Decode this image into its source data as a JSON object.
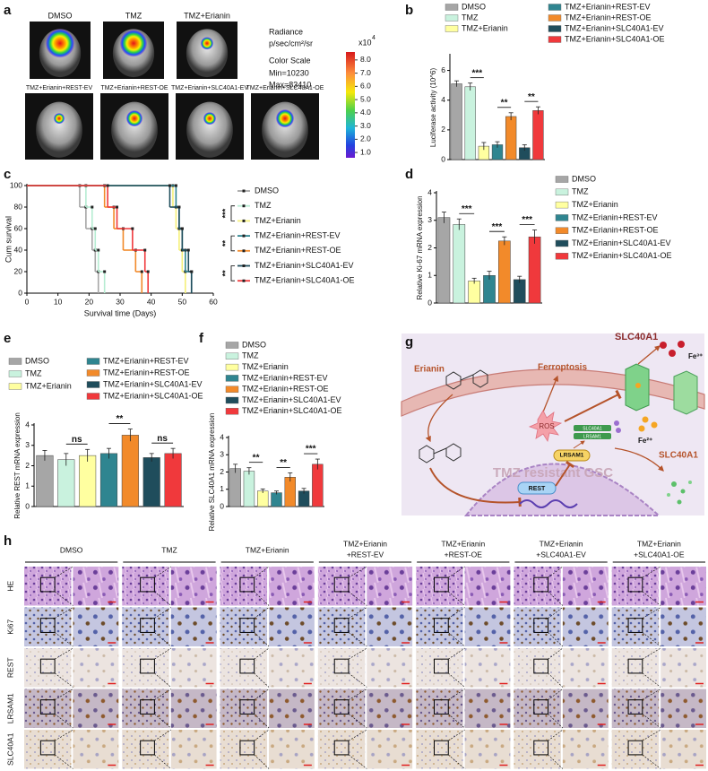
{
  "panel_labels": [
    "a",
    "b",
    "c",
    "d",
    "e",
    "f",
    "g",
    "h"
  ],
  "imaging": {
    "groups_top": [
      "DMSO",
      "TMZ",
      "TMZ+Erianin"
    ],
    "groups_bottom": [
      "TMZ+Erianin+REST-EV",
      "TMZ+Erianin+REST-OE",
      "TMZ+Erianin+SLC40A1-EV",
      "TMZ+Erianin+SLC40A1-OE"
    ],
    "radiance": "Radiance",
    "radiance_unit": "p/sec/cm²/sr",
    "color_scale": "Color Scale",
    "min": "Min=10230",
    "max": "Max=83410",
    "colorbar": {
      "multiplier": "x10",
      "exponent": "4",
      "lim": [
        0.6,
        8.6
      ],
      "ticks": [
        {
          "value": 1,
          "label": "1.0"
        },
        {
          "value": 2,
          "label": "2.0"
        },
        {
          "value": 3,
          "label": "3.0"
        },
        {
          "value": 4,
          "label": "4.0"
        },
        {
          "value": 5,
          "label": "5.0"
        },
        {
          "value": 6,
          "label": "6.0"
        },
        {
          "value": 7,
          "label": "7.0"
        },
        {
          "value": 8,
          "label": "8.0"
        }
      ]
    }
  },
  "chart_data": [
    {
      "type": "bar",
      "categories": [
        "DMSO",
        "TMZ",
        "TMZ+Erianin",
        "TMZ+Erianin+REST-EV",
        "TMZ+Erianin+REST-OE",
        "TMZ+Erianin+SLC40A1-EV",
        "TMZ+Erianin+SLC40A1-OE"
      ],
      "colors": [
        "#a6a6a6",
        "#c9f2de",
        "#ffffa0",
        "#2f8590",
        "#f28a2a",
        "#1f4d5c",
        "#f0393c"
      ],
      "values": [
        5.1,
        4.9,
        0.9,
        1.0,
        2.9,
        0.8,
        3.3
      ],
      "errors": [
        0.2,
        0.25,
        0.25,
        0.2,
        0.25,
        0.2,
        0.25
      ],
      "y_label": "Luciferase activity (10^6)",
      "ylim": [
        0,
        7
      ],
      "yticks": [
        0,
        2,
        4,
        6
      ],
      "annotations": [
        "***",
        "**",
        "**"
      ]
    },
    {
      "type": "survival",
      "x_label": "Survival time (Days)",
      "y_label": "Cum survival",
      "xlim": [
        0,
        60
      ],
      "xticks": [
        0,
        10,
        20,
        30,
        40,
        50,
        60
      ],
      "ylim": [
        0,
        100
      ],
      "yticks": [
        0,
        20,
        40,
        60,
        80,
        100
      ],
      "series": [
        {
          "name": "DMSO",
          "color": "#a6a6a6",
          "x": [
            0,
            17,
            19,
            21,
            22,
            23
          ],
          "values": [
            100,
            80,
            60,
            40,
            20,
            0
          ]
        },
        {
          "name": "TMZ",
          "color": "#b6ecd2",
          "x": [
            0,
            19,
            21,
            22,
            23,
            25
          ],
          "values": [
            100,
            80,
            60,
            40,
            20,
            0
          ]
        },
        {
          "name": "TMZ+Erianin",
          "color": "#f5f07a",
          "x": [
            0,
            47,
            48,
            49,
            50,
            51
          ],
          "values": [
            100,
            80,
            60,
            40,
            20,
            0
          ]
        },
        {
          "name": "TMZ+Erianin+REST-EV",
          "color": "#2f8590",
          "x": [
            0,
            48,
            49,
            50,
            51,
            53
          ],
          "values": [
            100,
            80,
            60,
            40,
            20,
            0
          ]
        },
        {
          "name": "TMZ+Erianin+REST-OE",
          "color": "#f28a2a",
          "x": [
            0,
            25,
            28,
            31,
            35,
            37
          ],
          "values": [
            100,
            80,
            60,
            40,
            20,
            0
          ]
        },
        {
          "name": "TMZ+Erianin+SLC40A1-EV",
          "color": "#1f4d5c",
          "x": [
            0,
            46,
            49,
            50,
            52,
            53
          ],
          "values": [
            100,
            80,
            60,
            40,
            20,
            0
          ]
        },
        {
          "name": "TMZ+Erianin+SLC40A1-OE",
          "color": "#f0393c",
          "x": [
            0,
            26,
            29,
            34,
            38,
            39
          ],
          "values": [
            100,
            80,
            60,
            40,
            20,
            0
          ]
        }
      ],
      "annotations": [
        "***",
        "**",
        "**"
      ]
    },
    {
      "type": "bar",
      "categories": [
        "DMSO",
        "TMZ",
        "TMZ+Erianin",
        "TMZ+Erianin+REST-EV",
        "TMZ+Erianin+REST-OE",
        "TMZ+Erianin+SLC40A1-EV",
        "TMZ+Erianin+SLC40A1-OE"
      ],
      "colors": [
        "#a6a6a6",
        "#c9f2de",
        "#ffffa0",
        "#2f8590",
        "#f28a2a",
        "#1f4d5c",
        "#f0393c"
      ],
      "values": [
        3.1,
        2.85,
        0.8,
        1.0,
        2.25,
        0.85,
        2.4
      ],
      "errors": [
        0.2,
        0.2,
        0.1,
        0.15,
        0.15,
        0.12,
        0.25
      ],
      "y_label": "Relative Ki-67 mRNA expression",
      "ylim": [
        0,
        4
      ],
      "yticks": [
        0,
        1,
        2,
        3,
        4
      ],
      "annotations": [
        "***",
        "***",
        "***"
      ]
    },
    {
      "type": "bar",
      "categories": [
        "DMSO",
        "TMZ",
        "TMZ+Erianin",
        "TMZ+Erianin+REST-EV",
        "TMZ+Erianin+REST-OE",
        "TMZ+Erianin+SLC40A1-EV",
        "TMZ+Erianin+SLC40A1-OE"
      ],
      "colors": [
        "#a6a6a6",
        "#c9f2de",
        "#ffffa0",
        "#2f8590",
        "#f28a2a",
        "#1f4d5c",
        "#f0393c"
      ],
      "values": [
        2.5,
        2.3,
        2.5,
        2.6,
        3.5,
        2.4,
        2.6
      ],
      "errors": [
        0.25,
        0.3,
        0.3,
        0.25,
        0.3,
        0.2,
        0.25
      ],
      "y_label": "Relative REST mRNA expression",
      "ylim": [
        0,
        4
      ],
      "yticks": [
        0,
        1,
        2,
        3,
        4
      ],
      "annotations": [
        "ns",
        "**",
        "ns"
      ]
    },
    {
      "type": "bar",
      "categories": [
        "DMSO",
        "TMZ",
        "TMZ+Erianin",
        "TMZ+Erianin+REST-EV",
        "TMZ+Erianin+REST-OE",
        "TMZ+Erianin+SLC40A1-EV",
        "TMZ+Erianin+SLC40A1-OE"
      ],
      "colors": [
        "#a6a6a6",
        "#c9f2de",
        "#ffffa0",
        "#2f8590",
        "#f28a2a",
        "#1f4d5c",
        "#f0393c"
      ],
      "values": [
        2.2,
        2.05,
        0.9,
        0.8,
        1.7,
        0.9,
        2.45
      ],
      "errors": [
        0.25,
        0.2,
        0.12,
        0.1,
        0.25,
        0.15,
        0.3
      ],
      "y_label": "Relative SLC40A1 mRNA expression",
      "ylim": [
        0,
        4
      ],
      "yticks": [
        0,
        1,
        2,
        3,
        4
      ],
      "annotations": [
        "**",
        "**",
        "***"
      ]
    }
  ],
  "diagram": {
    "erianin": "Erianin",
    "ferroptosis": "Ferroptosis",
    "slc40a1_top": "SLC40A1",
    "fe3": "Fe³⁺",
    "fe2": "Fe²⁺",
    "ros": "ROS",
    "slc40a1_small": "SLC40A1",
    "lrsam1_small": "LRSAM1",
    "lrsam1": "LRSAM1",
    "rest": "REST",
    "cell": "TMZ resistant GSC",
    "slc40a1_right": "SLC40A1"
  },
  "histology": {
    "columns": [
      [
        "DMSO"
      ],
      [
        "TMZ"
      ],
      [
        "TMZ+Erianin"
      ],
      [
        "TMZ+Erianin",
        "+REST-EV"
      ],
      [
        "TMZ+Erianin",
        "+REST-OE"
      ],
      [
        "TMZ+Erianin",
        "+SLC40A1-EV"
      ],
      [
        "TMZ+Erianin",
        "+SLC40A1-OE"
      ]
    ],
    "rows": [
      "HE",
      "Ki67",
      "REST",
      "LRSAM1",
      "SLC40A1"
    ]
  }
}
